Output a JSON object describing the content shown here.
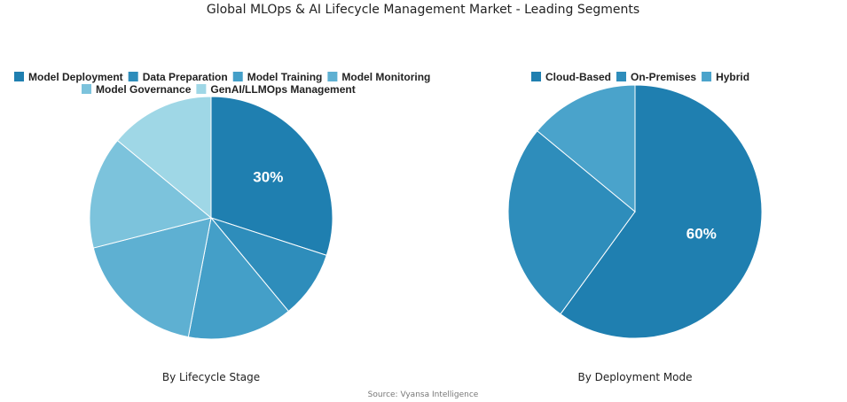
{
  "title": "Global MLOps & AI Lifecycle Management Market - Leading Segments",
  "source": "Source: Vyansa Intelligence",
  "chart_data": [
    {
      "type": "pie",
      "subtitle": "By Lifecycle Stage",
      "legend_position": "top",
      "categories": [
        "Model Deployment",
        "Data Preparation",
        "Model Training",
        "Model Monitoring",
        "Model Governance",
        "GenAI/LLMOps Management"
      ],
      "values": [
        30,
        9,
        14,
        18,
        15,
        14
      ],
      "colors": [
        "#1f7fb0",
        "#2e8dbb",
        "#449fc8",
        "#5eb0d2",
        "#7cc3dc",
        "#9fd7e6"
      ],
      "data_labels": [
        "30%",
        "",
        "",
        "",
        "",
        ""
      ]
    },
    {
      "type": "pie",
      "subtitle": "By Deployment Mode",
      "legend_position": "top",
      "categories": [
        "Cloud-Based",
        "On-Premises",
        "Hybrid"
      ],
      "values": [
        60,
        26,
        14
      ],
      "colors": [
        "#1f7fb0",
        "#2e8dbb",
        "#4aa3cb"
      ],
      "data_labels": [
        "60%",
        "",
        ""
      ]
    }
  ]
}
